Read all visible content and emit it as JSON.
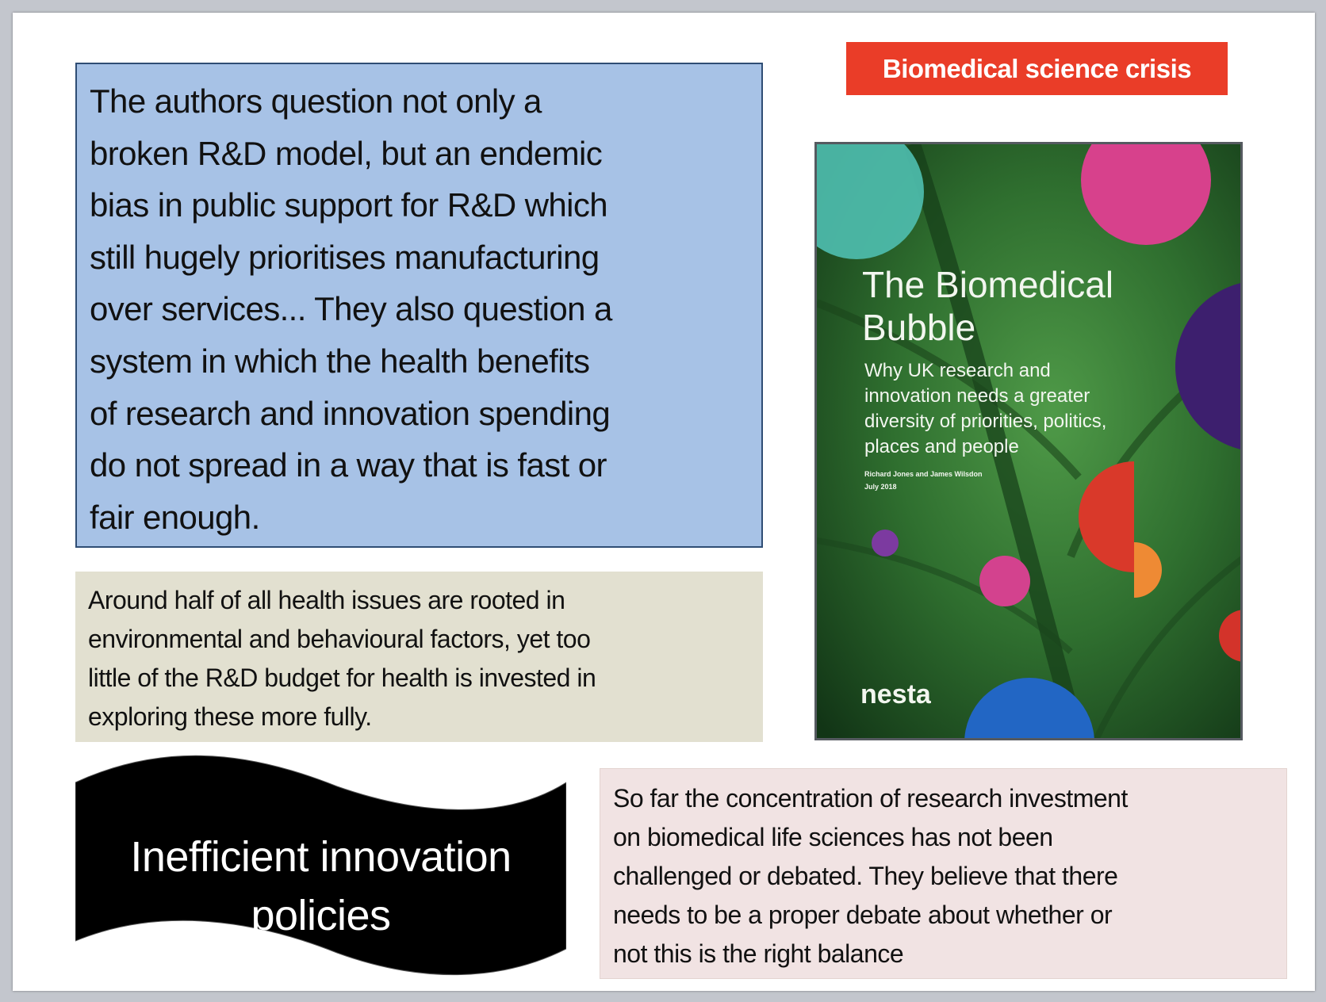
{
  "main_quote": {
    "lines": [
      "The authors question not only a",
      "broken R&D model, but an endemic",
      "bias in public support for R&D which",
      "still hugely prioritises manufacturing",
      "over services... They also question a",
      "system in which the health benefits",
      "of research and innovation spending",
      "do not spread in a way that is fast or",
      "fair enough."
    ]
  },
  "health_note": {
    "lines": [
      "Around half of all health issues are rooted in",
      "environmental and behavioural factors, yet too",
      "little of the R&D budget for health is invested in",
      "exploring these more fully."
    ]
  },
  "investment_note": {
    "lines": [
      "So far the concentration of research investment",
      "on biomedical life sciences has not been",
      "challenged or debated. They believe that there",
      "needs to be a proper debate about whether or",
      "not this is the right balance"
    ]
  },
  "tag": {
    "label": "Biomedical science crisis",
    "color": "#ea3d28"
  },
  "banner": {
    "lines": [
      "Inefficient innovation",
      "policies"
    ]
  },
  "book_cover": {
    "title_lines": [
      "The Biomedical",
      "Bubble"
    ],
    "subtitle_lines": [
      "Why UK research and",
      "innovation needs a greater",
      "diversity of priorities, politics,",
      "places and people"
    ],
    "authors": "Richard Jones and James Wilsdon",
    "date": "July 2018",
    "publisher_logo": "nesta"
  }
}
